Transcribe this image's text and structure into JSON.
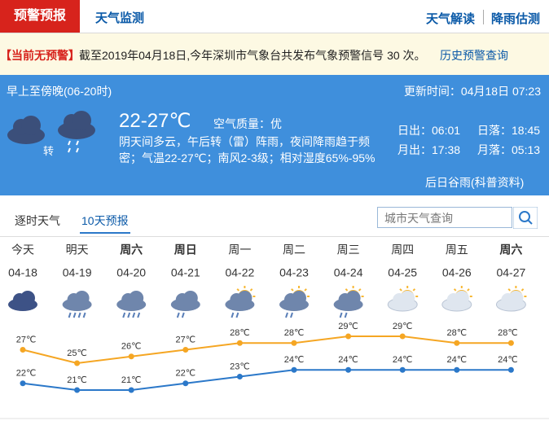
{
  "tabs": {
    "left": [
      "预警预报",
      "天气监测"
    ],
    "right": [
      "天气解读",
      "降雨估测"
    ]
  },
  "warning": {
    "status": "【当前无预警】",
    "text": "截至2019年04月18日,今年深圳市气象台共发布气象预警信号 30 次。",
    "link": "历史预警查询"
  },
  "today": {
    "period": "早上至傍晚(06-20时)",
    "updated": "更新时间：04月18日 07:23",
    "transition": "转",
    "temperature": "22-27℃",
    "air_quality": "空气质量：优",
    "description": "阴天间多云，午后转（雷）阵雨，夜间降雨趋于频密；气温22-27℃；南风2-3级；相对湿度65%-95%",
    "sun_moon": [
      "日出：06:01",
      "日落：18:45",
      "月出：17:38",
      "月落：05:13"
    ],
    "note": "后日谷雨(科普资料)"
  },
  "forecast_tabs": [
    "逐时天气",
    "10天预报"
  ],
  "search_placeholder": "城市天气查询",
  "chart_data": {
    "type": "line",
    "days": [
      "今天",
      "明天",
      "周六",
      "周日",
      "周一",
      "周二",
      "周三",
      "周四",
      "周五",
      "周六"
    ],
    "categories": [
      "04-18",
      "04-19",
      "04-20",
      "04-21",
      "04-22",
      "04-23",
      "04-24",
      "04-25",
      "04-26",
      "04-27"
    ],
    "series": [
      {
        "color": "#f5a623",
        "values": [
          27,
          25,
          26,
          27,
          28,
          28,
          29,
          29,
          28,
          28
        ],
        "value_labels": [
          "27℃",
          "25℃",
          "26℃",
          "27℃",
          "28℃",
          "28℃",
          "29℃",
          "29℃",
          "28℃",
          "28℃"
        ]
      },
      {
        "color": "#2b78c9",
        "values": [
          22,
          21,
          21,
          22,
          23,
          24,
          24,
          24,
          24,
          24
        ],
        "value_labels": [
          "22℃",
          "21℃",
          "21℃",
          "22℃",
          "23℃",
          "24℃",
          "24℃",
          "24℃",
          "24℃",
          "24℃"
        ]
      }
    ]
  }
}
